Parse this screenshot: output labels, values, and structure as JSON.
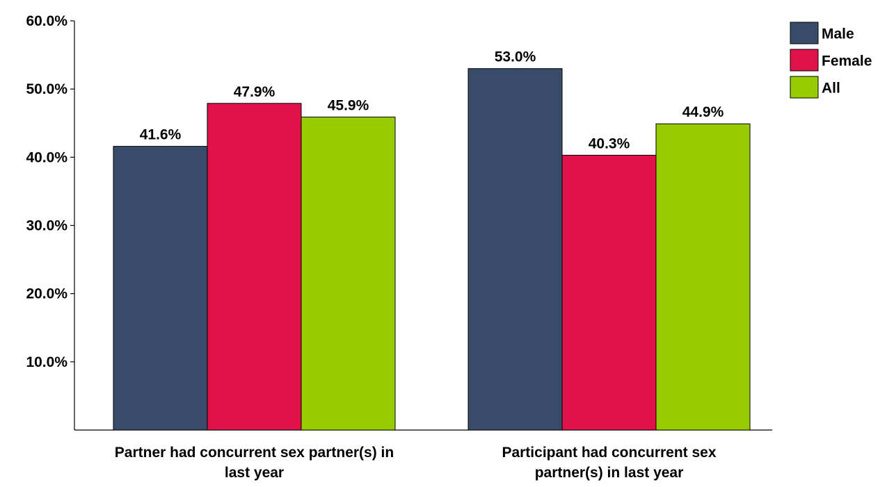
{
  "chart_data": {
    "type": "bar",
    "title": "",
    "xlabel": "",
    "ylabel": "",
    "ylim": [
      0,
      60
    ],
    "yticks": [
      10,
      20,
      30,
      40,
      50,
      60
    ],
    "ytick_labels": [
      "10.0%",
      "20.0%",
      "30.0%",
      "40.0%",
      "50.0%",
      "60.0%"
    ],
    "categories": [
      [
        "Partner had concurrent sex partner(s) in",
        "last year"
      ],
      [
        "Participant had concurrent sex",
        "partner(s) in last year"
      ]
    ],
    "series": [
      {
        "name": "Male",
        "color": "#384c6a",
        "values": [
          41.6,
          53.0
        ],
        "labels": [
          "41.6%",
          "53.0%"
        ]
      },
      {
        "name": "Female",
        "color": "#e1124a",
        "values": [
          47.9,
          40.3
        ],
        "labels": [
          "47.9%",
          "40.3%"
        ]
      },
      {
        "name": "All",
        "color": "#99cc00",
        "values": [
          45.9,
          44.9
        ],
        "labels": [
          "45.9%",
          "44.9%"
        ]
      }
    ],
    "legend_position": "top-right",
    "grid": false
  }
}
